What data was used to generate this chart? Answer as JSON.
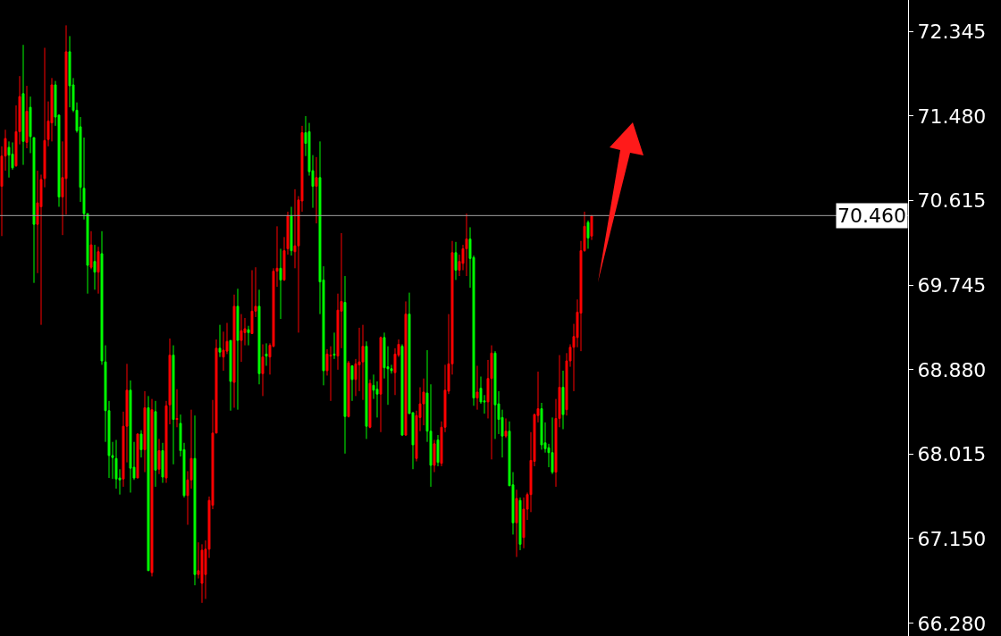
{
  "chart_data": {
    "type": "candlestick",
    "categories": [
      null,
      null,
      null,
      null,
      null,
      null,
      null,
      null,
      null,
      null,
      null,
      null,
      null,
      null,
      null,
      null,
      null,
      null,
      null,
      null,
      null,
      null,
      null,
      null,
      null,
      null,
      null,
      null,
      null,
      null,
      null,
      null,
      null,
      null,
      null,
      null,
      null,
      null,
      null,
      null,
      null,
      null,
      null,
      null,
      null,
      null,
      null,
      null,
      null,
      null,
      null,
      null,
      null,
      null,
      null,
      null,
      null,
      null,
      null,
      null,
      null,
      null,
      null,
      null,
      null,
      null,
      null,
      null,
      null,
      null,
      null,
      null,
      null,
      null,
      null,
      null,
      null,
      null,
      null,
      null,
      null,
      null,
      null,
      null,
      null,
      null,
      null,
      null,
      null,
      null,
      null,
      null,
      null,
      null,
      null,
      null,
      null,
      null,
      null,
      null,
      null,
      null,
      null,
      null,
      null,
      null,
      null,
      null,
      null,
      null,
      null,
      null,
      null,
      null,
      null,
      null,
      null,
      null,
      null,
      null,
      null,
      null,
      null,
      null,
      null,
      null,
      null,
      null,
      null,
      null,
      null,
      null,
      null,
      null,
      null,
      null,
      null,
      null,
      null,
      null,
      null,
      null,
      null,
      null,
      null,
      null,
      null,
      null,
      null,
      null,
      null,
      null,
      null,
      null,
      null,
      null,
      null,
      null,
      null,
      null,
      null,
      null,
      null,
      null,
      null,
      null,
      null,
      null,
      null,
      null,
      null,
      null,
      null,
      null,
      null,
      null,
      null,
      null,
      null,
      null,
      null,
      null,
      null,
      null,
      null,
      null,
      null,
      null,
      null,
      null,
      null,
      null,
      null,
      null,
      null,
      null,
      null,
      null,
      null,
      null,
      null,
      null,
      null,
      null,
      null,
      null,
      null,
      null,
      null,
      null,
      null,
      null,
      null,
      null,
      null,
      null,
      null,
      null,
      null,
      null,
      null,
      null,
      null,
      null,
      null,
      null,
      null,
      null,
      null,
      null,
      null,
      null,
      null,
      null,
      null,
      null,
      null,
      null,
      null,
      null,
      null,
      null,
      null,
      null,
      null,
      null,
      null,
      null,
      null,
      null,
      null,
      null,
      null,
      null
    ],
    "ohlc": [
      [
        70.76,
        71.17,
        70.25,
        71.07
      ],
      [
        71.07,
        71.34,
        70.92,
        71.25
      ],
      [
        71.16,
        71.22,
        70.85,
        71.08
      ],
      [
        71.09,
        71.21,
        70.93,
        70.95
      ],
      [
        70.97,
        71.59,
        70.96,
        71.32
      ],
      [
        71.32,
        71.89,
        71.19,
        71.68
      ],
      [
        71.71,
        72.21,
        70.98,
        71.22
      ],
      [
        71.21,
        71.79,
        71.15,
        71.53
      ],
      [
        71.57,
        71.68,
        71.1,
        71.27
      ],
      [
        71.26,
        71.26,
        69.77,
        70.37
      ],
      [
        70.37,
        70.92,
        69.87,
        70.59
      ],
      [
        70.55,
        70.88,
        69.34,
        70.83
      ],
      [
        70.84,
        72.18,
        70.75,
        71.23
      ],
      [
        71.24,
        71.63,
        71.17,
        71.43
      ],
      [
        71.41,
        71.87,
        71.22,
        71.8
      ],
      [
        71.8,
        71.84,
        71.38,
        71.47
      ],
      [
        71.49,
        71.49,
        70.55,
        70.65
      ],
      [
        70.65,
        71.22,
        70.26,
        70.85
      ],
      [
        70.84,
        72.41,
        70.47,
        72.14
      ],
      [
        72.14,
        72.3,
        71.57,
        71.79
      ],
      [
        71.8,
        71.87,
        71.52,
        71.54
      ],
      [
        71.54,
        71.62,
        71.31,
        71.33
      ],
      [
        71.37,
        71.47,
        70.6,
        70.75
      ],
      [
        70.74,
        71.26,
        70.42,
        70.48
      ],
      [
        70.48,
        70.48,
        69.66,
        69.95
      ],
      [
        69.93,
        70.3,
        69.91,
        70.16
      ],
      [
        69.99,
        70.16,
        69.7,
        69.88
      ],
      [
        69.88,
        70.14,
        69.66,
        70.09
      ],
      [
        70.07,
        70.3,
        68.93,
        68.97
      ],
      [
        68.96,
        69.13,
        68.14,
        68.46
      ],
      [
        68.46,
        68.56,
        67.77,
        68.0
      ],
      [
        68.0,
        68.14,
        67.76,
        67.98
      ],
      [
        67.97,
        68.16,
        67.66,
        67.76
      ],
      [
        67.77,
        67.86,
        67.6,
        67.75
      ],
      [
        67.76,
        68.45,
        67.68,
        68.3
      ],
      [
        68.3,
        68.94,
        67.93,
        68.67
      ],
      [
        68.67,
        68.77,
        67.62,
        67.87
      ],
      [
        67.88,
        68.14,
        67.75,
        67.77
      ],
      [
        67.77,
        68.23,
        67.77,
        68.22
      ],
      [
        68.22,
        68.26,
        67.98,
        68.06
      ],
      [
        68.06,
        68.66,
        67.83,
        68.49
      ],
      [
        68.49,
        68.61,
        66.82,
        66.82
      ],
      [
        66.8,
        68.58,
        66.76,
        68.47
      ],
      [
        68.45,
        68.56,
        67.68,
        67.85
      ],
      [
        67.86,
        68.17,
        67.81,
        68.05
      ],
      [
        68.05,
        68.13,
        67.72,
        67.78
      ],
      [
        67.77,
        68.56,
        67.72,
        68.51
      ],
      [
        68.52,
        69.2,
        68.32,
        69.03
      ],
      [
        69.03,
        69.13,
        67.91,
        68.37
      ],
      [
        68.37,
        68.68,
        68.29,
        68.38
      ],
      [
        68.33,
        68.42,
        67.99,
        68.05
      ],
      [
        68.06,
        68.13,
        67.57,
        67.59
      ],
      [
        67.59,
        67.84,
        67.29,
        67.75
      ],
      [
        67.75,
        68.47,
        67.66,
        67.97
      ],
      [
        67.97,
        68.41,
        66.67,
        66.78
      ],
      [
        66.78,
        67.11,
        66.74,
        66.82
      ],
      [
        66.69,
        67.09,
        66.49,
        67.03
      ],
      [
        66.78,
        67.13,
        66.53,
        67.04
      ],
      [
        67.04,
        67.58,
        66.95,
        67.54
      ],
      [
        67.49,
        68.57,
        67.45,
        68.23
      ],
      [
        68.23,
        69.19,
        68.23,
        69.1
      ],
      [
        69.1,
        69.34,
        69.01,
        69.06
      ],
      [
        69.01,
        69.27,
        68.87,
        69.08
      ],
      [
        69.07,
        69.36,
        69.04,
        69.17
      ],
      [
        69.18,
        69.18,
        68.46,
        68.76
      ],
      [
        68.75,
        69.65,
        68.49,
        69.53
      ],
      [
        69.53,
        69.71,
        68.47,
        69.18
      ],
      [
        69.18,
        69.45,
        68.96,
        69.28
      ],
      [
        69.26,
        69.41,
        69.13,
        69.3
      ],
      [
        69.29,
        69.33,
        69.13,
        69.26
      ],
      [
        69.25,
        69.9,
        69.25,
        69.48
      ],
      [
        69.48,
        69.93,
        69.42,
        69.53
      ],
      [
        69.53,
        69.7,
        68.73,
        68.84
      ],
      [
        68.84,
        69.14,
        68.61,
        69.01
      ],
      [
        69.04,
        69.15,
        68.92,
        69.02
      ],
      [
        69.01,
        69.15,
        68.83,
        69.13
      ],
      [
        69.12,
        69.92,
        69.11,
        69.89
      ],
      [
        69.89,
        70.35,
        69.73,
        69.92
      ],
      [
        69.92,
        70.12,
        69.4,
        69.8
      ],
      [
        69.8,
        70.24,
        69.79,
        70.1
      ],
      [
        70.12,
        70.5,
        70.06,
        70.46
      ],
      [
        70.46,
        70.55,
        70.05,
        70.1
      ],
      [
        70.09,
        70.73,
        69.92,
        70.15
      ],
      [
        70.15,
        70.66,
        69.26,
        70.62
      ],
      [
        70.61,
        71.38,
        70.5,
        71.31
      ],
      [
        71.31,
        71.48,
        71.07,
        71.2
      ],
      [
        71.32,
        71.41,
        70.87,
        70.91
      ],
      [
        70.92,
        71.08,
        70.54,
        70.76
      ],
      [
        70.76,
        71.06,
        70.38,
        70.85
      ],
      [
        70.85,
        71.22,
        69.45,
        69.78
      ],
      [
        69.8,
        69.94,
        68.72,
        68.87
      ],
      [
        68.87,
        69.09,
        68.82,
        69.04
      ],
      [
        69.02,
        69.12,
        68.56,
        69.03
      ],
      [
        69.04,
        69.26,
        68.99,
        69.03
      ],
      [
        69.02,
        69.66,
        68.88,
        69.49
      ],
      [
        69.48,
        70.28,
        69.1,
        69.58
      ],
      [
        69.57,
        69.84,
        68.02,
        68.4
      ],
      [
        68.4,
        68.97,
        68.39,
        68.95
      ],
      [
        68.92,
        68.92,
        68.56,
        68.78
      ],
      [
        68.78,
        68.99,
        68.61,
        68.94
      ],
      [
        68.93,
        69.31,
        68.66,
        68.96
      ],
      [
        68.96,
        69.34,
        68.57,
        69.12
      ],
      [
        69.12,
        69.17,
        68.17,
        68.3
      ],
      [
        68.29,
        68.78,
        68.28,
        68.74
      ],
      [
        68.72,
        68.83,
        68.58,
        68.67
      ],
      [
        68.68,
        68.76,
        68.39,
        68.63
      ],
      [
        68.63,
        69.22,
        68.24,
        69.21
      ],
      [
        69.21,
        69.26,
        68.79,
        68.9
      ],
      [
        68.91,
        69.12,
        68.52,
        68.89
      ],
      [
        68.89,
        68.93,
        68.84,
        68.87
      ],
      [
        68.85,
        69.1,
        68.62,
        69.04
      ],
      [
        69.03,
        69.19,
        69.01,
        69.14
      ],
      [
        69.12,
        69.14,
        68.2,
        68.21
      ],
      [
        68.21,
        69.58,
        68.2,
        69.45
      ],
      [
        69.45,
        69.67,
        68.43,
        68.43
      ],
      [
        68.44,
        68.44,
        67.86,
        68.11
      ],
      [
        67.97,
        68.46,
        67.94,
        68.41
      ],
      [
        68.39,
        68.7,
        68.25,
        68.53
      ],
      [
        68.53,
        68.79,
        68.31,
        68.65
      ],
      [
        68.64,
        69.08,
        68.14,
        68.25
      ],
      [
        68.25,
        68.73,
        67.68,
        67.9
      ],
      [
        67.9,
        68.16,
        67.83,
        68.12
      ],
      [
        68.16,
        68.21,
        67.89,
        67.93
      ],
      [
        67.92,
        68.35,
        67.89,
        68.29
      ],
      [
        68.29,
        68.93,
        68.24,
        68.67
      ],
      [
        68.66,
        69.45,
        68.63,
        68.94
      ],
      [
        68.94,
        70.2,
        68.83,
        70.08
      ],
      [
        70.08,
        70.19,
        69.8,
        69.9
      ],
      [
        69.9,
        70.06,
        69.84,
        69.99
      ],
      [
        69.97,
        70.16,
        69.9,
        70.12
      ],
      [
        70.12,
        70.48,
        69.84,
        70.22
      ],
      [
        70.22,
        70.34,
        69.72,
        70.02
      ],
      [
        70.03,
        70.05,
        68.51,
        68.59
      ],
      [
        68.59,
        68.92,
        68.47,
        68.65
      ],
      [
        68.69,
        68.81,
        68.53,
        68.55
      ],
      [
        68.56,
        68.62,
        68.43,
        68.55
      ],
      [
        68.55,
        68.98,
        68.38,
        68.79
      ],
      [
        68.79,
        69.13,
        67.96,
        69.05
      ],
      [
        69.05,
        69.07,
        68.17,
        68.52
      ],
      [
        68.53,
        68.66,
        68.22,
        68.37
      ],
      [
        68.39,
        68.47,
        67.98,
        68.2
      ],
      [
        68.2,
        68.38,
        68.18,
        68.25
      ],
      [
        68.25,
        68.35,
        67.69,
        67.69
      ],
      [
        67.7,
        67.83,
        67.19,
        67.31
      ],
      [
        67.31,
        67.65,
        66.96,
        67.56
      ],
      [
        67.54,
        67.57,
        67.03,
        67.09
      ],
      [
        67.16,
        67.57,
        67.05,
        67.45
      ],
      [
        67.45,
        67.62,
        67.34,
        67.6
      ],
      [
        67.6,
        68.24,
        67.42,
        67.95
      ],
      [
        67.94,
        68.43,
        67.89,
        68.42
      ],
      [
        68.41,
        68.86,
        68.34,
        68.48
      ],
      [
        68.48,
        68.54,
        68.06,
        68.11
      ],
      [
        68.13,
        68.34,
        68.03,
        68.07
      ],
      [
        68.08,
        68.12,
        67.88,
        68.03
      ],
      [
        68.03,
        68.39,
        67.81,
        67.83
      ],
      [
        67.83,
        68.58,
        67.68,
        68.38
      ],
      [
        68.38,
        69.03,
        68.29,
        68.7
      ],
      [
        68.7,
        68.87,
        68.27,
        68.42
      ],
      [
        68.47,
        69.05,
        68.41,
        68.97
      ],
      [
        68.97,
        69.14,
        68.91,
        69.11
      ],
      [
        69.11,
        69.35,
        68.66,
        69.22
      ],
      [
        69.21,
        69.6,
        69.11,
        69.47
      ],
      [
        69.46,
        70.2,
        69.07,
        70.1
      ],
      [
        70.1,
        70.5,
        70.09,
        70.35
      ],
      [
        70.39,
        70.41,
        70.12,
        70.23
      ],
      [
        70.25,
        70.46,
        70.21,
        70.46
      ],
      null,
      null,
      null,
      null,
      null,
      null,
      null,
      null,
      null,
      null,
      null,
      null,
      null,
      null,
      null,
      null,
      null,
      null,
      null,
      null,
      null,
      null,
      null,
      null,
      null,
      null,
      null,
      null,
      null,
      null,
      null,
      null,
      null,
      null,
      null,
      null,
      null,
      null,
      null,
      null,
      null,
      null,
      null,
      null,
      null,
      null,
      null,
      null,
      null,
      null,
      null,
      null,
      null,
      null,
      null,
      null,
      null,
      null,
      null,
      null,
      null,
      null,
      null,
      null,
      null,
      null,
      null,
      null,
      null,
      null,
      null,
      null,
      null,
      null,
      null,
      null,
      null,
      null,
      null,
      null,
      null,
      null,
      null,
      null,
      null,
      null,
      null,
      null
    ],
    "colors": [
      "#ff0000",
      "#ff0000",
      "#00ff00",
      "#00ff00",
      "#ff0000",
      "#ff0000",
      "#00ff00",
      "#ff0000",
      "#00ff00",
      "#00ff00",
      "#ff0000",
      "#ff0000",
      "#ff0000",
      "#ff0000",
      "#ff0000",
      "#00ff00",
      "#00ff00",
      "#ff0000",
      "#ff0000",
      "#00ff00",
      "#00ff00",
      "#00ff00",
      "#00ff00",
      "#00ff00",
      "#00ff00",
      "#ff0000",
      "#00ff00",
      "#ff0000",
      "#00ff00",
      "#00ff00",
      "#00ff00",
      "#00ff00",
      "#00ff00",
      "#00ff00",
      "#ff0000",
      "#ff0000",
      "#00ff00",
      "#00ff00",
      "#ff0000",
      "#00ff00",
      "#ff0000",
      "#00ff00",
      "#ff0000",
      "#00ff00",
      "#ff0000",
      "#00ff00",
      "#ff0000",
      "#ff0000",
      "#00ff00",
      "#ff0000",
      "#00ff00",
      "#00ff00",
      "#ff0000",
      "#ff0000",
      "#00ff00",
      "#ff0000",
      "#ff0000",
      "#ff0000",
      "#ff0000",
      "#ff0000",
      "#ff0000",
      "#00ff00",
      "#ff0000",
      "#ff0000",
      "#00ff00",
      "#ff0000",
      "#00ff00",
      "#ff0000",
      "#ff0000",
      "#00ff00",
      "#ff0000",
      "#ff0000",
      "#00ff00",
      "#ff0000",
      "#00ff00",
      "#ff0000",
      "#ff0000",
      "#ff0000",
      "#00ff00",
      "#ff0000",
      "#ff0000",
      "#00ff00",
      "#ff0000",
      "#ff0000",
      "#ff0000",
      "#00ff00",
      "#00ff00",
      "#00ff00",
      "#ff0000",
      "#00ff00",
      "#00ff00",
      "#ff0000",
      "#ff0000",
      "#00ff00",
      "#ff0000",
      "#ff0000",
      "#00ff00",
      "#ff0000",
      "#00ff00",
      "#ff0000",
      "#ff0000",
      "#ff0000",
      "#00ff00",
      "#ff0000",
      "#00ff00",
      "#00ff00",
      "#ff0000",
      "#00ff00",
      "#00ff00",
      "#00ff00",
      "#ff0000",
      "#ff0000",
      "#00ff00",
      "#ff0000",
      "#00ff00",
      "#00ff00",
      "#ff0000",
      "#ff0000",
      "#ff0000",
      "#00ff00",
      "#00ff00",
      "#ff0000",
      "#00ff00",
      "#ff0000",
      "#ff0000",
      "#ff0000",
      "#ff0000",
      "#00ff00",
      "#ff0000",
      "#ff0000",
      "#ff0000",
      "#00ff00",
      "#00ff00",
      "#ff0000",
      "#00ff00",
      "#00ff00",
      "#ff0000",
      "#ff0000",
      "#00ff00",
      "#00ff00",
      "#00ff00",
      "#ff0000",
      "#00ff00",
      "#00ff00",
      "#ff0000",
      "#00ff00",
      "#ff0000",
      "#ff0000",
      "#ff0000",
      "#ff0000",
      "#ff0000",
      "#00ff00",
      "#00ff00",
      "#00ff00",
      "#00ff00",
      "#ff0000",
      "#ff0000",
      "#00ff00",
      "#ff0000",
      "#ff0000",
      "#ff0000",
      "#ff0000",
      "#ff0000",
      "#ff0000",
      "#00ff00",
      "#ff0000",
      null,
      null,
      null,
      null,
      null,
      null,
      null,
      null,
      null,
      null,
      null,
      null,
      null,
      null,
      null,
      null,
      null,
      null,
      null,
      null,
      null,
      null,
      null,
      null,
      null,
      null,
      null,
      null,
      null,
      null,
      null,
      null,
      null,
      null,
      null,
      null,
      null,
      null,
      null,
      null,
      null,
      null,
      null,
      null,
      null,
      null,
      null,
      null,
      null,
      null,
      null,
      null,
      null,
      null,
      null,
      null,
      null,
      null,
      null,
      null,
      null,
      null,
      null,
      null,
      null,
      null,
      null,
      null,
      null,
      null,
      null,
      null,
      null,
      null,
      null,
      null,
      null,
      null,
      null,
      null,
      null,
      null,
      null,
      null,
      null,
      null,
      null,
      null
    ],
    "ylim": [
      66.15,
      72.67
    ],
    "yticks": [
      {
        "value": 72.345,
        "label": "72.345"
      },
      {
        "value": 71.48,
        "label": "71.480"
      },
      {
        "value": 70.615,
        "label": "70.615"
      },
      {
        "value": 69.745,
        "label": "69.745"
      },
      {
        "value": 68.88,
        "label": "68.880"
      },
      {
        "value": 68.015,
        "label": "68.015"
      },
      {
        "value": 67.15,
        "label": "67.150"
      },
      {
        "value": 66.28,
        "label": "66.280"
      }
    ],
    "tick_labels": "y",
    "ref_lines": [
      {
        "axis": "y",
        "value": 70.46,
        "label": "70.460",
        "color": "#a0a0a0"
      }
    ]
  }
}
